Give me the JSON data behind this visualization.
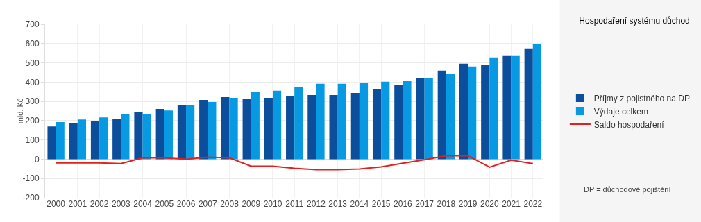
{
  "chart_data": {
    "type": "bar",
    "title": "Hospodaření systému důchod",
    "ylabel": "mld. Kč",
    "categories": [
      "2000",
      "2001",
      "2002",
      "2003",
      "2004",
      "2005",
      "2006",
      "2007",
      "2008",
      "2009",
      "2010",
      "2011",
      "2012",
      "2013",
      "2014",
      "2015",
      "2016",
      "2017",
      "2018",
      "2019",
      "2020",
      "2021",
      "2022"
    ],
    "series": [
      {
        "name": "Příjmy z pojistného na DP",
        "color": "#0b4f9c",
        "values": [
          170,
          188,
          199,
          210,
          246,
          261,
          279,
          308,
          322,
          311,
          318,
          329,
          333,
          333,
          344,
          362,
          384,
          420,
          460,
          496,
          489,
          539,
          575
        ]
      },
      {
        "name": "Výdaje celkem",
        "color": "#079ae3",
        "values": [
          192,
          206,
          217,
          232,
          235,
          253,
          279,
          297,
          318,
          347,
          355,
          376,
          391,
          391,
          394,
          402,
          405,
          423,
          441,
          481,
          528,
          539,
          597
        ]
      },
      {
        "name": "Saldo hospodaření",
        "type": "line",
        "color": "#e32020",
        "values": [
          -19,
          -19,
          -19,
          -23,
          7,
          7,
          0,
          11,
          7,
          -36,
          -36,
          -47,
          -54,
          -54,
          -51,
          -40,
          -21,
          -3,
          18,
          18,
          -41,
          -5,
          -23
        ]
      }
    ],
    "ylim": [
      -200,
      700
    ],
    "yticks": [
      -200,
      -100,
      0,
      100,
      200,
      300,
      400,
      500,
      600,
      700
    ],
    "grid": true,
    "legend": "right",
    "marker": "none",
    "annotations": [
      "DP = důchodové pojištění"
    ]
  }
}
